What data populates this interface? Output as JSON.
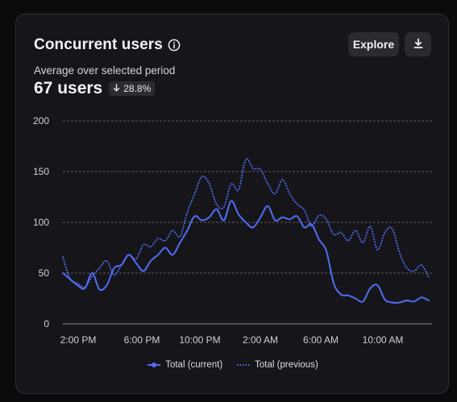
{
  "card": {
    "title": "Concurrent users",
    "explore_label": "Explore",
    "subtitle": "Average over selected period",
    "metric": "67 users",
    "delta": "28.8%"
  },
  "icons": {
    "info": "info-circle-icon",
    "download": "download-icon",
    "delta_arrow": "arrow-down-icon"
  },
  "colors": {
    "accent": "#4f6df5",
    "background": "#16161a",
    "grid": "#5a5a62"
  },
  "chart_data": {
    "type": "line",
    "yticks": [
      0,
      50,
      100,
      150,
      200
    ],
    "xtick_labels": [
      "2:00 PM",
      "6:00 PM",
      "10:00 PM",
      "2:00 AM",
      "6:00 AM",
      "10:00 AM"
    ],
    "ylim": [
      0,
      200
    ],
    "grid": true,
    "legend_position": "bottom",
    "series": [
      {
        "name": "Total (current)",
        "style": "solid",
        "color": "#4f6df5",
        "values": [
          50,
          44,
          38,
          35,
          50,
          34,
          38,
          55,
          58,
          68,
          60,
          52,
          62,
          68,
          75,
          68,
          80,
          92,
          106,
          102,
          105,
          113,
          102,
          121,
          108,
          100,
          95,
          105,
          116,
          102,
          105,
          103,
          106,
          95,
          98,
          83,
          72,
          40,
          29,
          28,
          25,
          22,
          35,
          38,
          24,
          21,
          21,
          23,
          22,
          26,
          23
        ]
      },
      {
        "name": "Total (previous)",
        "style": "dotted",
        "color": "#4f6df5",
        "values": [
          66,
          44,
          40,
          36,
          47,
          55,
          62,
          48,
          58,
          68,
          64,
          78,
          76,
          84,
          82,
          92,
          86,
          110,
          128,
          145,
          138,
          118,
          115,
          138,
          132,
          162,
          153,
          152,
          138,
          128,
          142,
          128,
          118,
          112,
          96,
          107,
          103,
          88,
          90,
          82,
          92,
          80,
          96,
          73,
          90,
          94,
          70,
          55,
          52,
          58,
          46
        ]
      }
    ]
  }
}
